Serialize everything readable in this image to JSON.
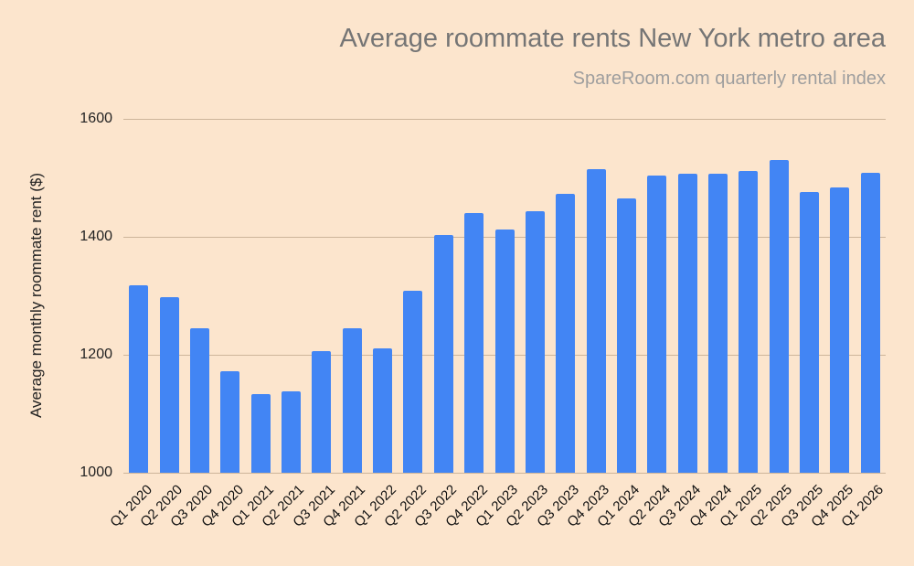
{
  "chart_data": {
    "type": "bar",
    "title": "Average roommate rents New York metro area",
    "subtitle": "SpareRoom.com quarterly rental index",
    "xlabel": "",
    "ylabel": "Average monthly roommate rent ($)",
    "ylim": [
      1000,
      1600
    ],
    "yticks": [
      1000,
      1200,
      1400,
      1600
    ],
    "grid": true,
    "legend": null,
    "bar_color": "#4285f4",
    "background_color": "#fce5cd",
    "categories": [
      "Q1 2020",
      "Q2 2020",
      "Q3 2020",
      "Q4 2020",
      "Q1 2021",
      "Q2 2021",
      "Q3 2021",
      "Q4 2021",
      "Q1 2022",
      "Q2 2022",
      "Q3 2022",
      "Q4 2022",
      "Q1 2023",
      "Q2 2023",
      "Q3 2023",
      "Q4 2023",
      "Q1 2024",
      "Q2 2024",
      "Q3 2024",
      "Q4 2024",
      "Q1 2025",
      "Q2 2025",
      "Q3 2025",
      "Q4 2025",
      "Q1 2026"
    ],
    "values": [
      1318,
      1298,
      1245,
      1172,
      1133,
      1138,
      1206,
      1245,
      1211,
      1309,
      1403,
      1440,
      1412,
      1443,
      1473,
      1515,
      1465,
      1504,
      1507,
      1507,
      1512,
      1530,
      1476,
      1484,
      1509
    ]
  }
}
